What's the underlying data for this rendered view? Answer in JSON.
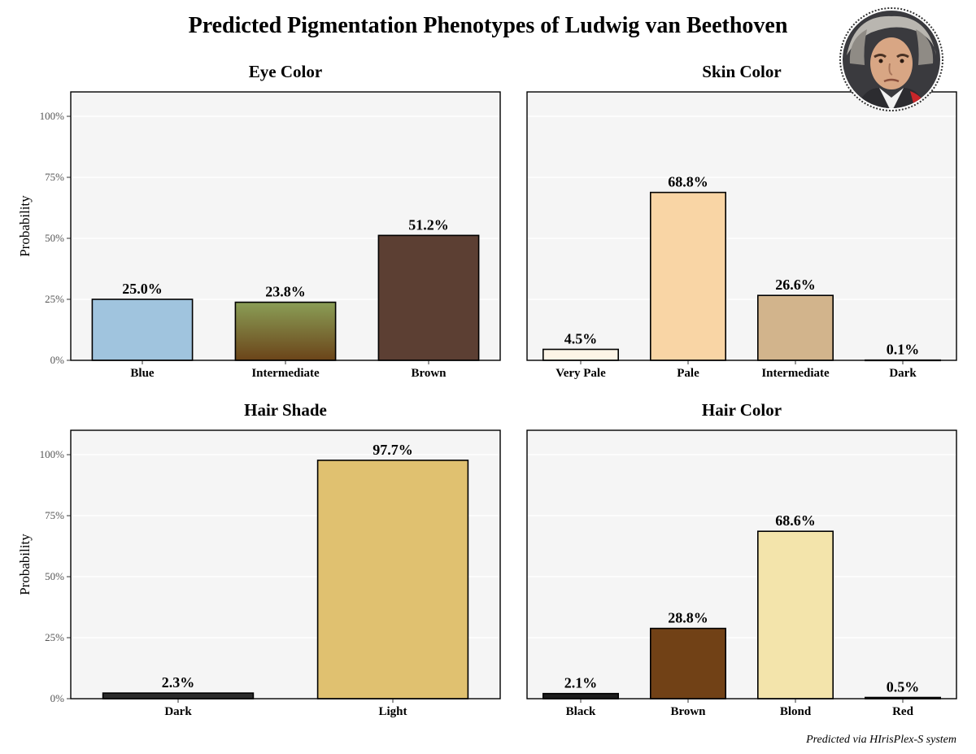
{
  "title": "Predicted Pigmentation Phenotypes of Ludwig van Beethoven",
  "footnote": "Predicted via HIrisPlex-S system",
  "portrait_icon": "beethoven-portrait-icon",
  "chart_data": [
    {
      "type": "bar",
      "title": "Eye Color",
      "ylabel": "Probability",
      "ylim": [
        0,
        110
      ],
      "yticks": [
        "0%",
        "25%",
        "50%",
        "75%",
        "100%"
      ],
      "categories": [
        "Blue",
        "Intermediate",
        "Brown"
      ],
      "values": [
        25.0,
        23.8,
        51.2
      ],
      "value_labels": [
        "25.0%",
        "23.8%",
        "51.2%"
      ],
      "colors": [
        "#a0c4de",
        "gradient",
        "#5c3f33"
      ],
      "gradient": [
        "#8a9e56",
        "#6b4419"
      ],
      "grid": true
    },
    {
      "type": "bar",
      "title": "Skin Color",
      "ylabel": "",
      "ylim": [
        0,
        110
      ],
      "yticks": [],
      "categories": [
        "Very Pale",
        "Pale",
        "Intermediate",
        "Dark"
      ],
      "values": [
        4.5,
        68.8,
        26.6,
        0.1
      ],
      "value_labels": [
        "4.5%",
        "68.8%",
        "26.6%",
        "0.1%"
      ],
      "colors": [
        "#fdf4e6",
        "#f9d5a5",
        "#d2b48c",
        "#4a2e1a"
      ],
      "grid": true
    },
    {
      "type": "bar",
      "title": "Hair Shade",
      "ylabel": "Probability",
      "ylim": [
        0,
        110
      ],
      "yticks": [
        "0%",
        "25%",
        "50%",
        "75%",
        "100%"
      ],
      "categories": [
        "Dark",
        "Light"
      ],
      "values": [
        2.3,
        97.7
      ],
      "value_labels": [
        "2.3%",
        "97.7%"
      ],
      "colors": [
        "#2b2b2b",
        "#e0c170"
      ],
      "grid": true
    },
    {
      "type": "bar",
      "title": "Hair Color",
      "ylabel": "",
      "ylim": [
        0,
        110
      ],
      "yticks": [],
      "categories": [
        "Black",
        "Brown",
        "Blond",
        "Red"
      ],
      "values": [
        2.1,
        28.8,
        68.6,
        0.5
      ],
      "value_labels": [
        "2.1%",
        "28.8%",
        "68.6%",
        "0.5%"
      ],
      "colors": [
        "#1c1c1c",
        "#714116",
        "#f3e4ab",
        "#a03a20"
      ],
      "grid": true
    }
  ]
}
